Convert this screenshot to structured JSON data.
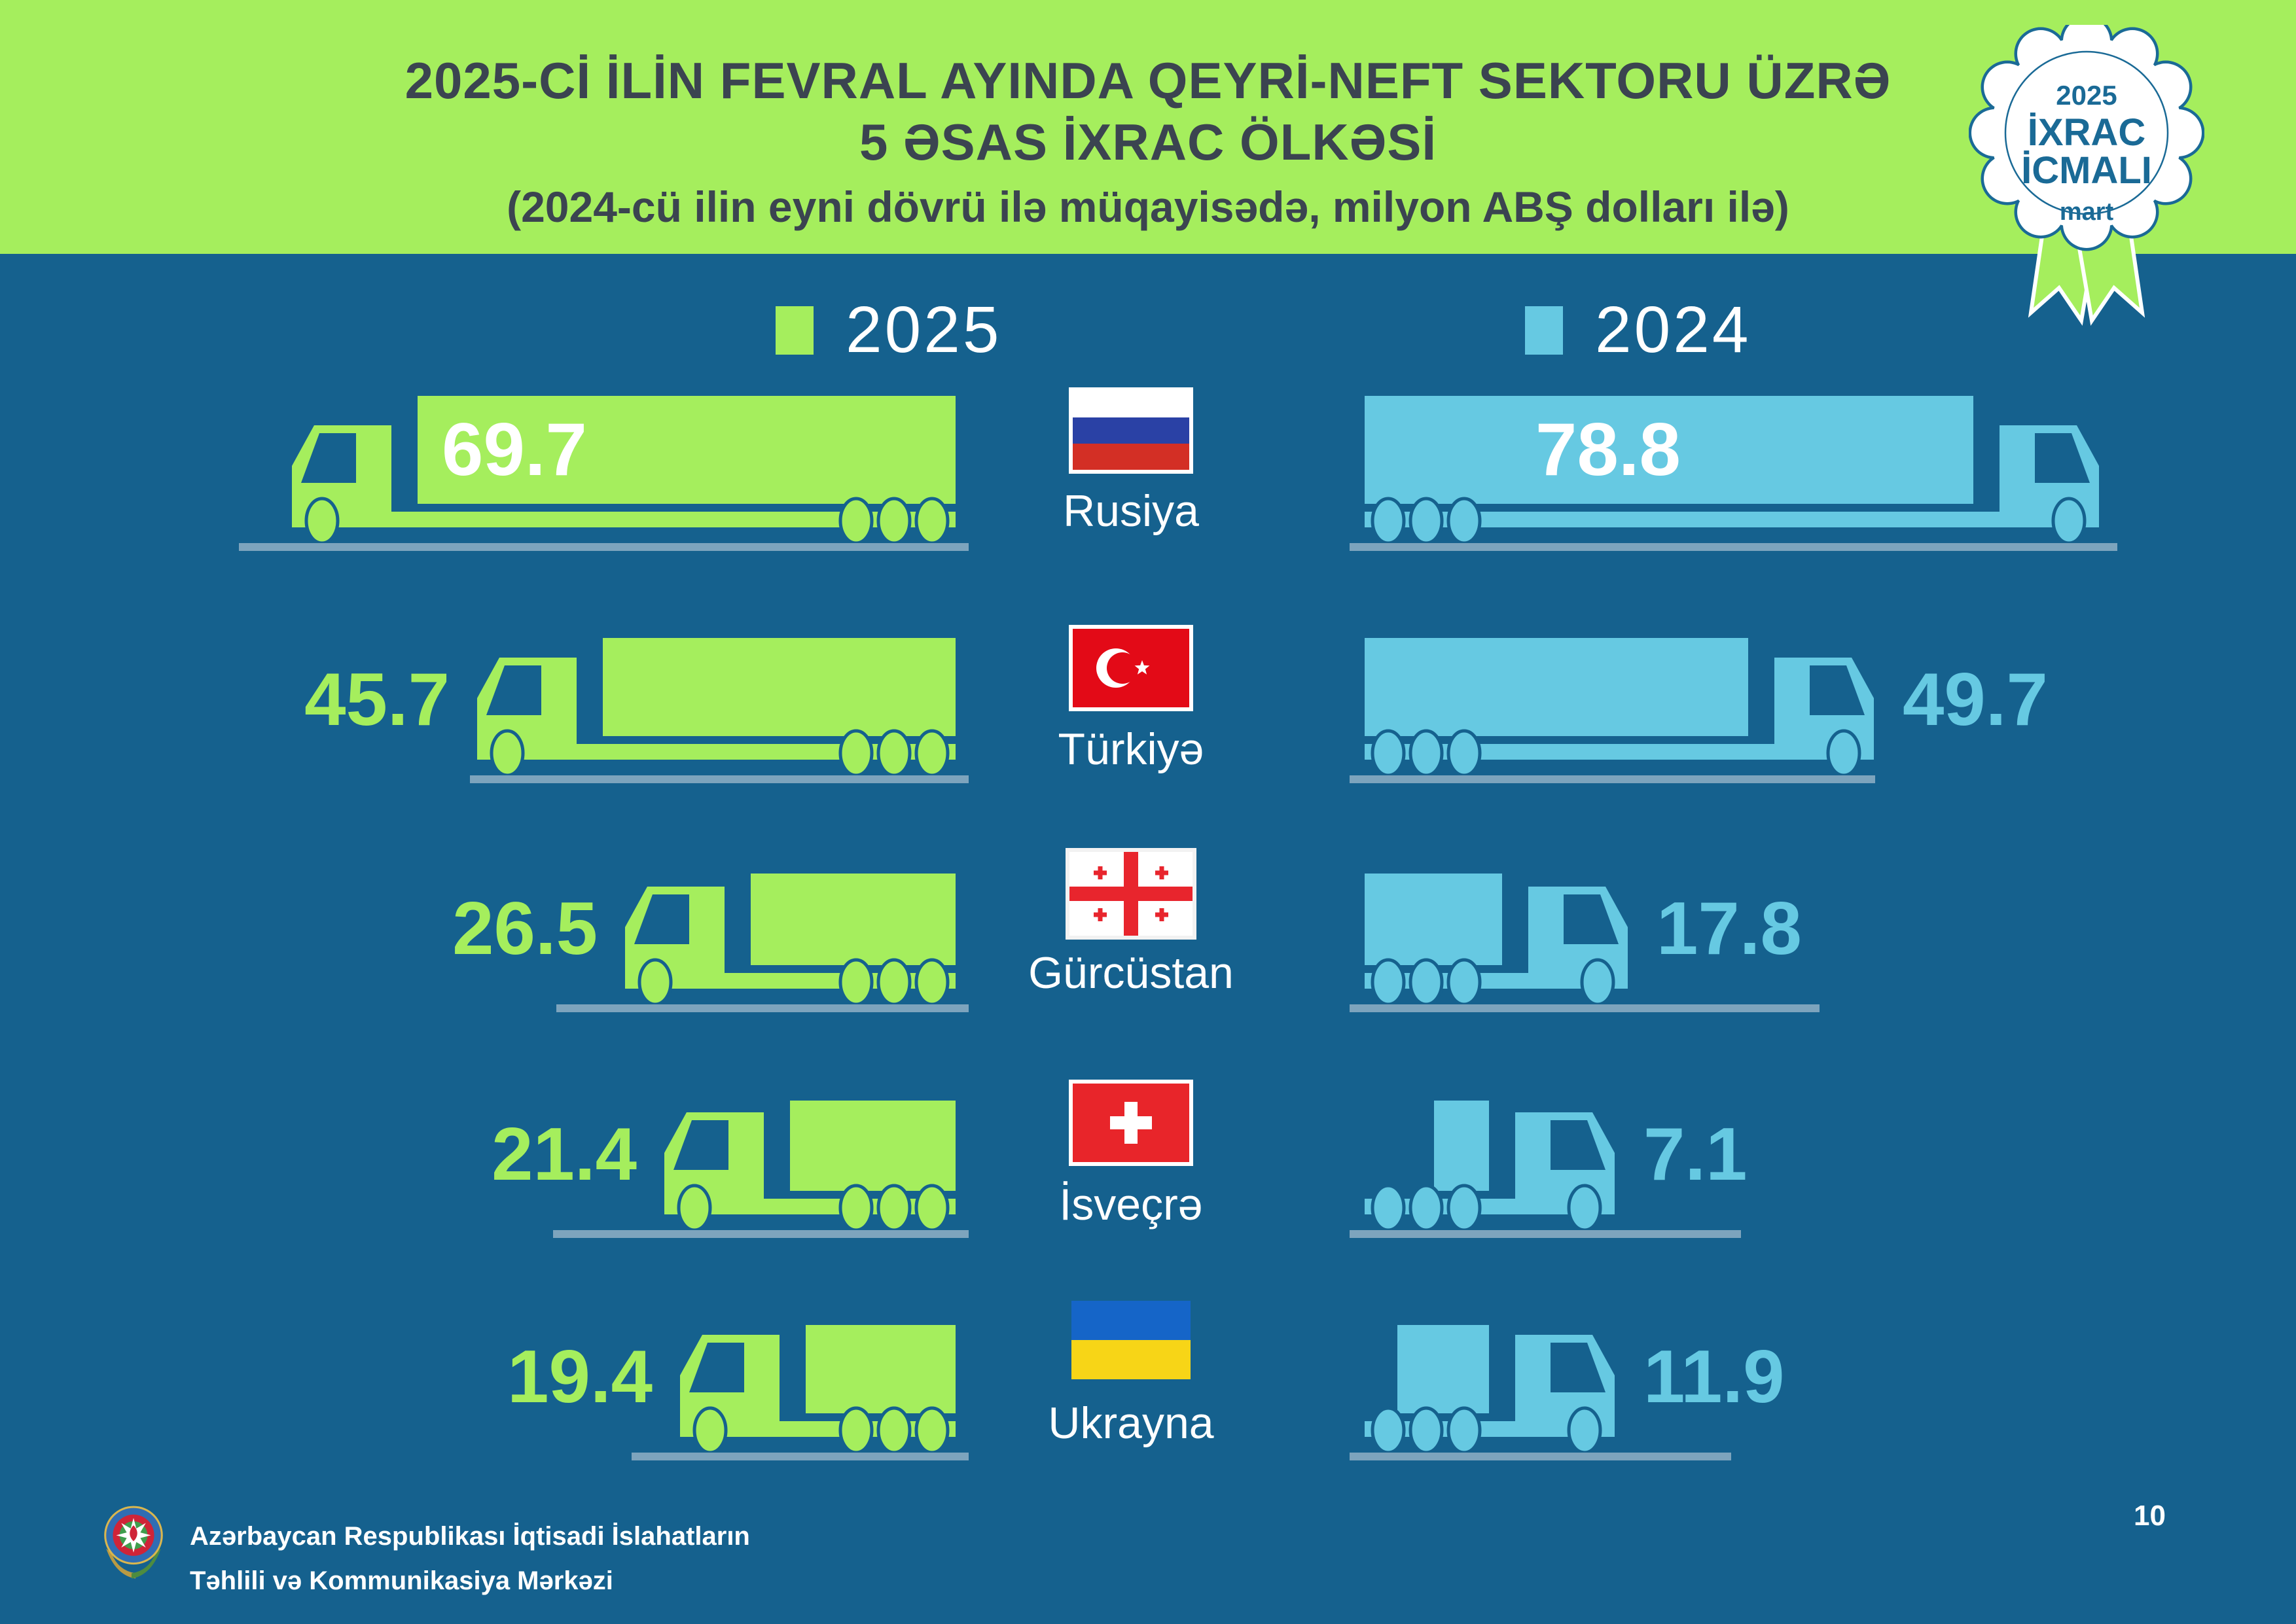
{
  "header": {
    "title_line1": "2025-Cİ İLİN FEVRAL AYINDA QEYRİ-NEFT SEKTORU ÜZRƏ",
    "title_line2": "5 ƏSAS İXRAC ÖLKƏSİ",
    "subtitle": "(2024-cü ilin eyni dövrü ilə müqayisədə, milyon ABŞ dolları ilə)"
  },
  "badge": {
    "year": "2025",
    "line1": "İXRAC",
    "line2": "İCMALI",
    "month": "mart"
  },
  "legend": {
    "items": [
      {
        "label": "2025",
        "color": "#a5ee5d"
      },
      {
        "label": "2024",
        "color": "#66c9e2"
      }
    ]
  },
  "rows": [
    {
      "country": "Rusiya",
      "flag": "russia",
      "v2025": "69.7",
      "v2024": "78.8"
    },
    {
      "country": "Türkiyə",
      "flag": "turkey",
      "v2025": "45.7",
      "v2024": "49.7"
    },
    {
      "country": "Gürcüstan",
      "flag": "georgia",
      "v2025": "26.5",
      "v2024": "17.8"
    },
    {
      "country": "İsveçrə",
      "flag": "switzerland",
      "v2025": "21.4",
      "v2024": "7.1"
    },
    {
      "country": "Ukrayna",
      "flag": "ukraine",
      "v2025": "19.4",
      "v2024": "11.9"
    }
  ],
  "footer": {
    "org_line1": "Azərbaycan Respublikası İqtisadi İslahatların",
    "org_line2": "Təhlili və Kommunikasiya Mərkəzi",
    "page": "10"
  },
  "colors": {
    "background": "#15618e",
    "green_2025": "#a5ee5d",
    "blue_2024": "#66c9e2",
    "header_band": "#a5ee5d",
    "title_text": "#3b4450",
    "badge_text": "#1a6a96",
    "ground_line": "#7da4bd"
  },
  "chart_data": {
    "type": "bar",
    "title": "2025-Cİ İLİN FEVRAL AYINDA QEYRİ-NEFT SEKTORU ÜZRƏ 5 ƏSAS İXRAC ÖLKƏSİ",
    "subtitle": "(2024-cü ilin eyni dövrü ilə müqayisədə, milyon ABŞ dolları ilə)",
    "unit": "milyon ABŞ dolları",
    "categories": [
      "Rusiya",
      "Türkiyə",
      "Gürcüstan",
      "İsveçrə",
      "Ukrayna"
    ],
    "series": [
      {
        "name": "2025",
        "values": [
          69.7,
          45.7,
          26.5,
          21.4,
          19.4
        ]
      },
      {
        "name": "2024",
        "values": [
          78.8,
          49.7,
          17.8,
          7.1,
          11.9
        ]
      }
    ],
    "legend_position": "top",
    "orientation": "horizontal-pictogram-trucks"
  }
}
